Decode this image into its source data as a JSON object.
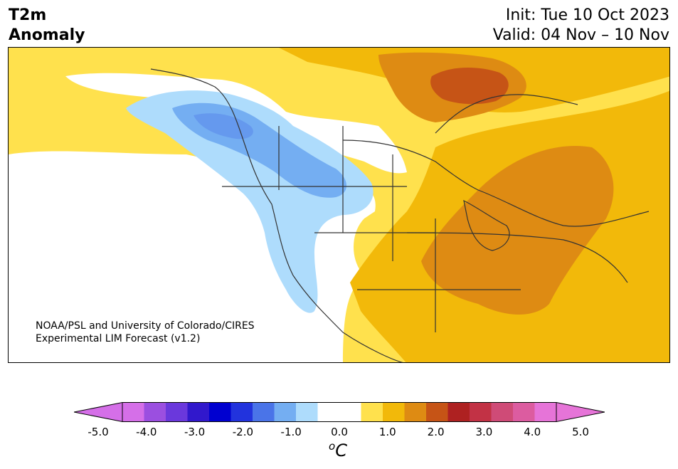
{
  "header": {
    "title_line1": "T2m",
    "title_line2": "Anomaly",
    "init": "Init: Tue 10 Oct 2023",
    "valid": "Valid: 04 Nov – 10 Nov"
  },
  "credit": {
    "line1": "NOAA/PSL and University of Colorado/CIRES",
    "line2": "Experimental LIM Forecast (v1.2)"
  },
  "colorbar": {
    "unit_base": "C",
    "unit_sup": "o",
    "ticks": [
      "-5.0",
      "-4.0",
      "-3.0",
      "-2.0",
      "-1.0",
      "0.0",
      "1.0",
      "2.0",
      "3.0",
      "4.0",
      "5.0"
    ],
    "colors": [
      "#d56fe8",
      "#9b4fe0",
      "#6a38dc",
      "#3118cc",
      "#0000d0",
      "#2233dd",
      "#4a74e8",
      "#74aef2",
      "#aedcfc",
      "#ffffff",
      "#ffffff",
      "#ffe14d",
      "#f2b90a",
      "#de8b13",
      "#c65416",
      "#ae2121",
      "#c23245",
      "#cf4b77",
      "#dc5ca0",
      "#e674d8"
    ],
    "min_color": "#d56fe8",
    "max_color": "#e674d8"
  }
}
